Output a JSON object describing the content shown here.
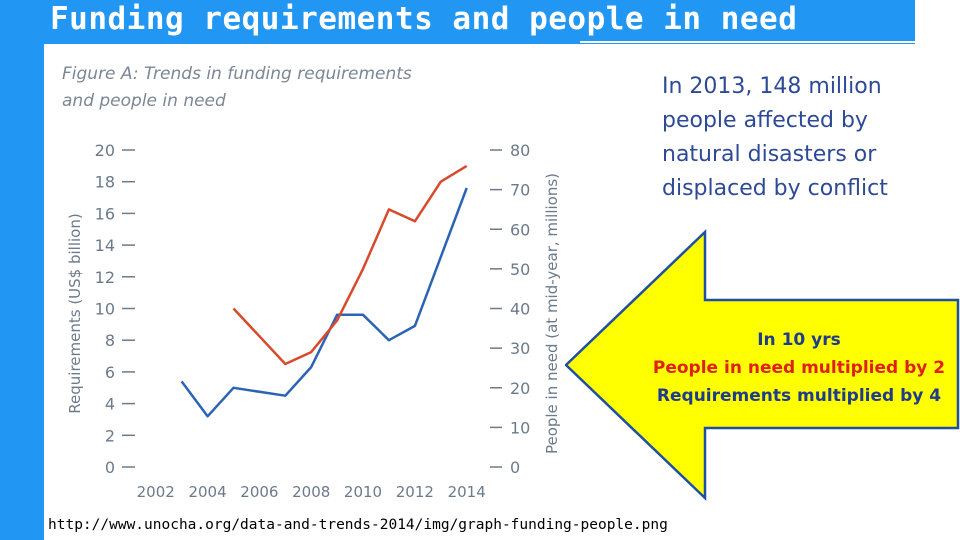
{
  "slide": {
    "title": "Funding requirements and people in need",
    "stat_lines": [
      "In 2013, 148 million",
      "people affected by",
      "natural disasters or",
      "displaced by conflict"
    ],
    "callout": {
      "line1": "In 10 yrs",
      "line2": "People in need multiplied by 2",
      "line3": "Requirements multiplied by 4",
      "colors": {
        "line1": "#1f3b8c",
        "line2": "#e0201a",
        "line3": "#1f3b8c",
        "arrow_fill": "#ffff00",
        "arrow_stroke": "#1e4fa0"
      }
    },
    "source": "http://www.unocha.org/data-and-trends-2014/img/graph-funding-people.png",
    "colors": {
      "header_bg": "#2196f3",
      "header_text": "#ffffff",
      "stat_text": "#2e4a96"
    }
  },
  "chart_data": {
    "type": "line",
    "title": "Figure A: Trends in funding requirements and people in need",
    "title_lines": [
      "Figure A: Trends in funding requirements",
      "and people in need"
    ],
    "x_ticks": [
      "2002",
      "2004",
      "2006",
      "2008",
      "2010",
      "2012",
      "2014"
    ],
    "xlim": [
      2001.2,
      2014.9
    ],
    "y_left": {
      "label": "Requirements (US$ billion)",
      "ticks": [
        "0",
        "2",
        "4",
        "6",
        "8",
        "10",
        "12",
        "14",
        "16",
        "18",
        "20"
      ],
      "lim": [
        0,
        20
      ]
    },
    "y_right": {
      "label": "People in need (at mid-year, millions)",
      "ticks": [
        "0",
        "10",
        "20",
        "30",
        "40",
        "50",
        "60",
        "70",
        "80"
      ],
      "lim": [
        0,
        80
      ]
    },
    "grid": false,
    "series": [
      {
        "axis": "left",
        "color": "#2b64b4",
        "x": [
          2003,
          2004,
          2005,
          2007,
          2008,
          2009,
          2010,
          2011,
          2012,
          2014
        ],
        "y": [
          5.4,
          3.2,
          5.0,
          4.5,
          6.3,
          9.6,
          9.6,
          8.0,
          8.9,
          17.6
        ]
      },
      {
        "axis": "right",
        "color": "#d84a2c",
        "x": [
          2005,
          2006,
          2007,
          2008,
          2009,
          2010,
          2011,
          2012,
          2013,
          2014
        ],
        "y": [
          40,
          33,
          26,
          29,
          37,
          50,
          65,
          62,
          72,
          76
        ]
      }
    ]
  }
}
